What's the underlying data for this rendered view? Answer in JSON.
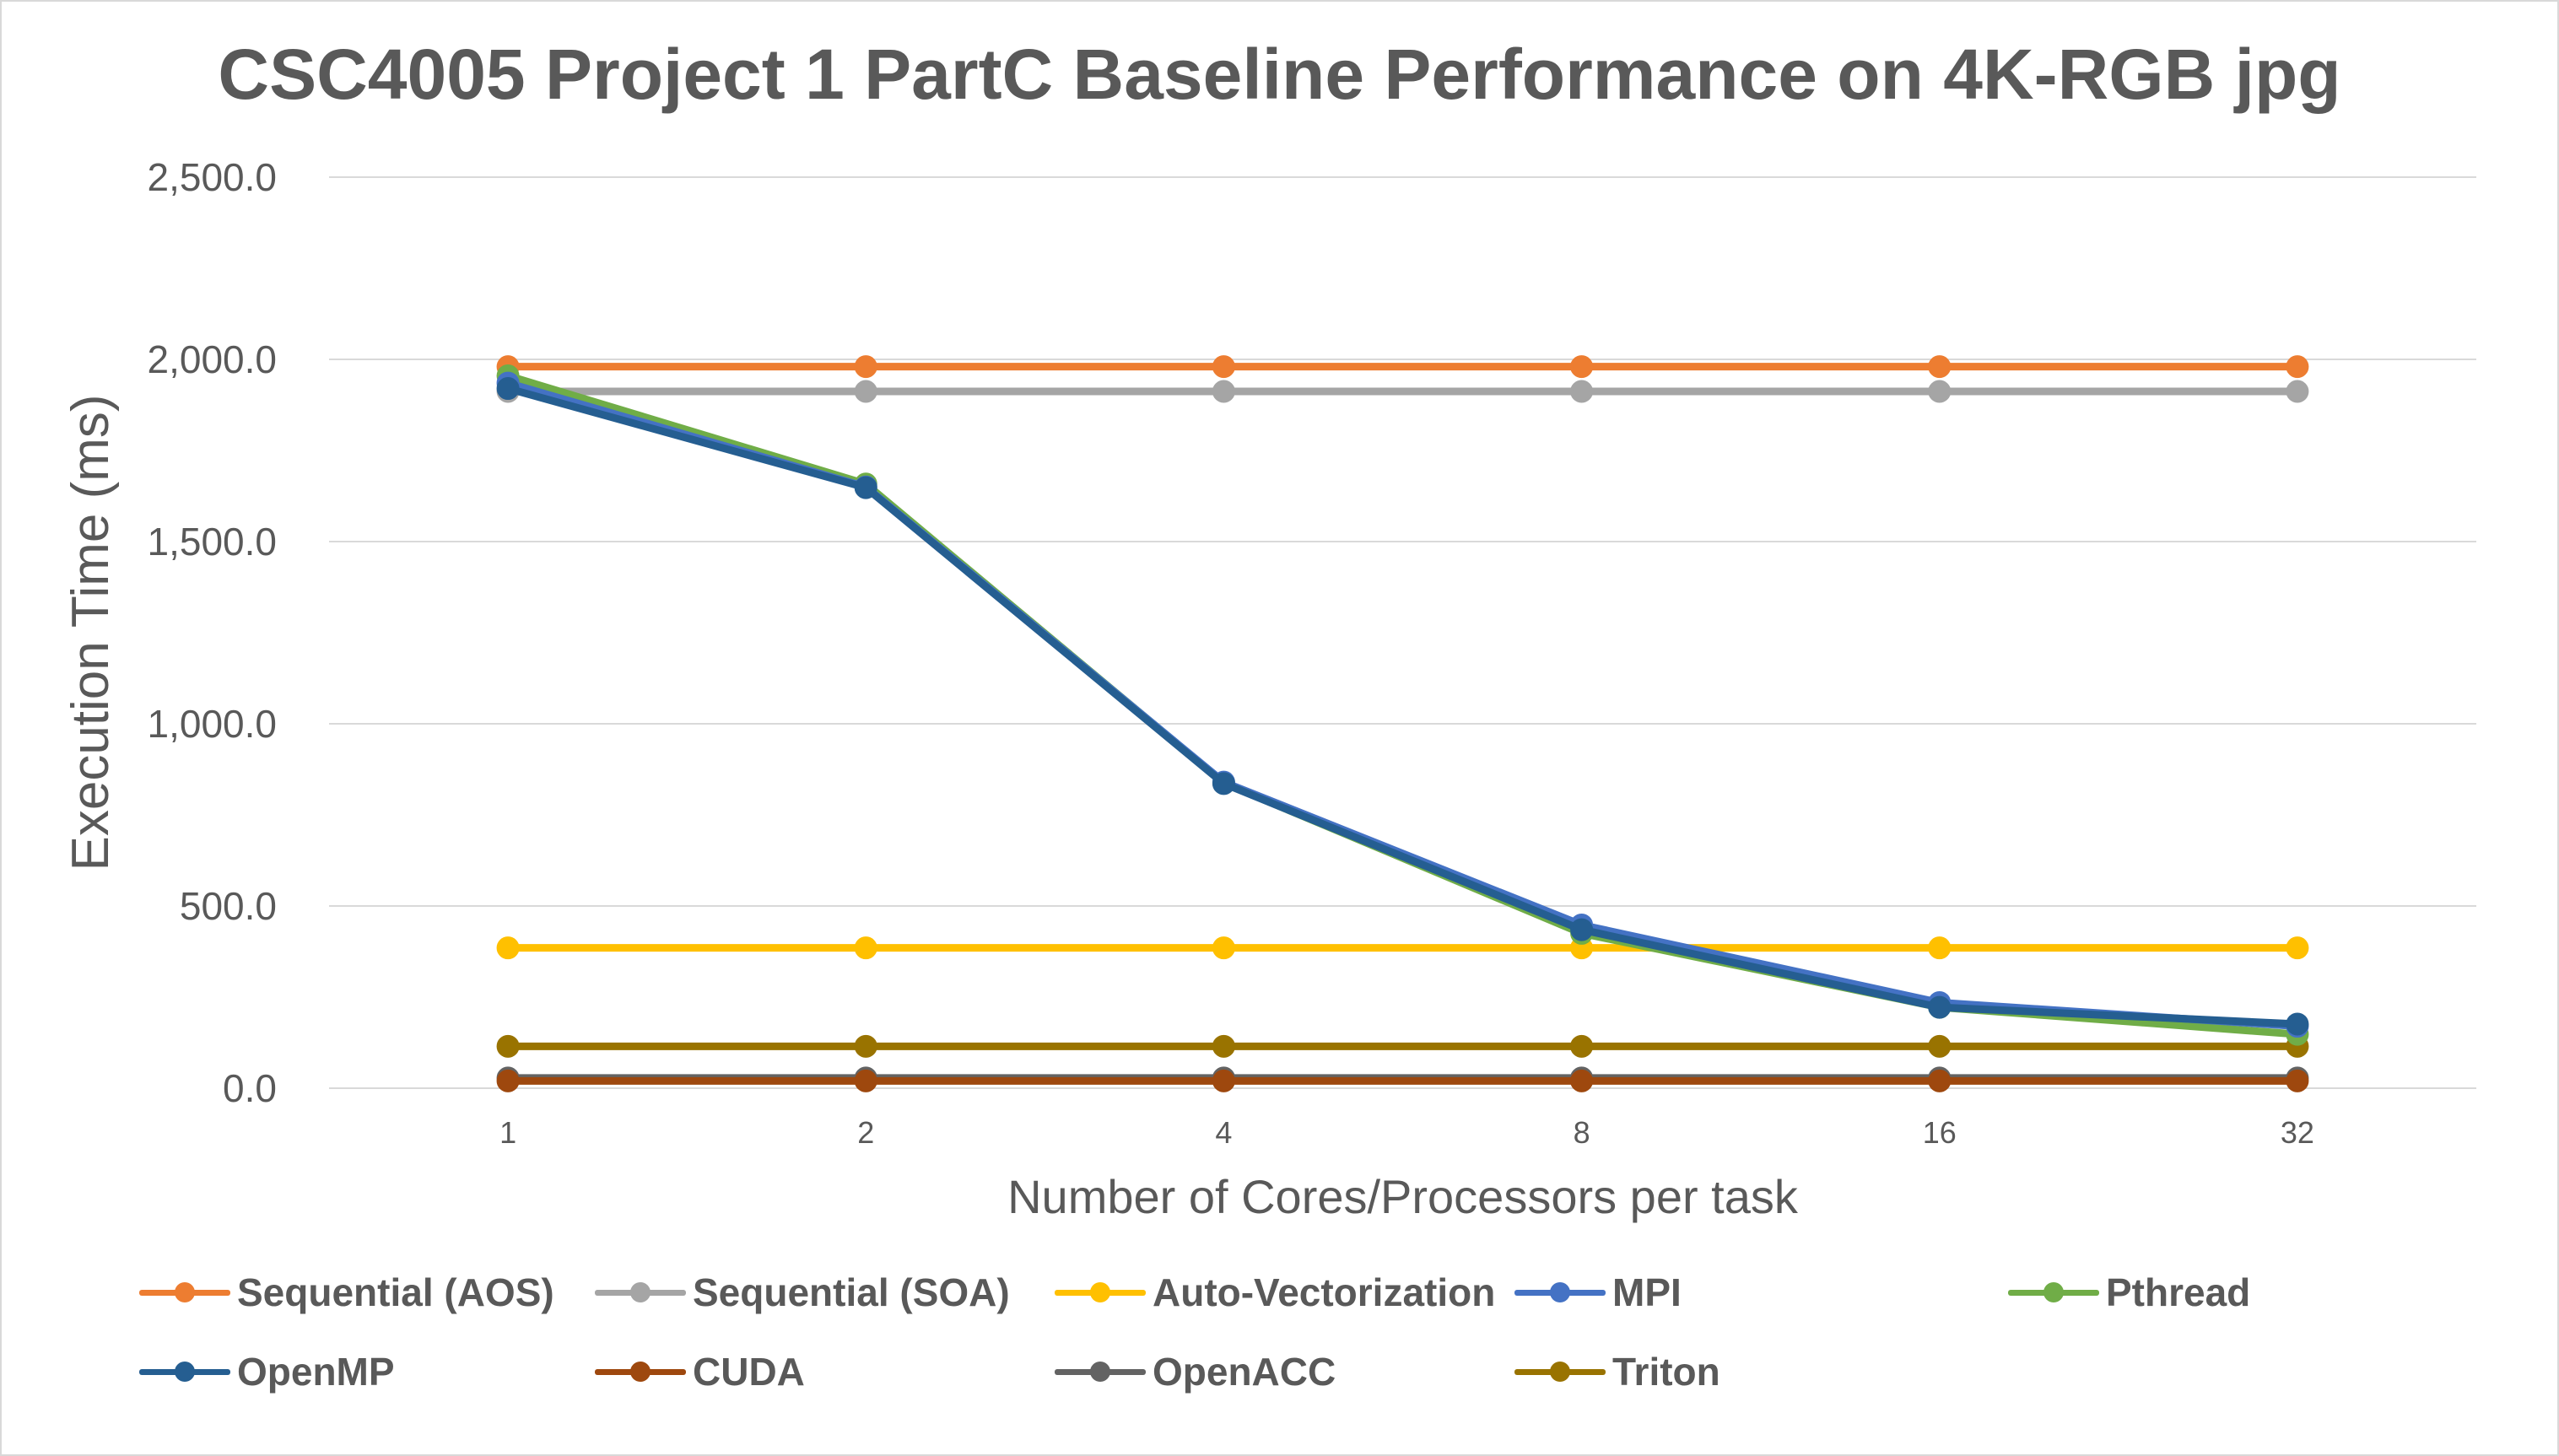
{
  "chart_data": {
    "type": "line",
    "title": "CSC4005 Project 1 PartC Baseline Performance on 4K-RGB jpg",
    "xlabel": "Number of Cores/Processors per task",
    "ylabel": "Execution Time (ms)",
    "categories": [
      "1",
      "2",
      "4",
      "8",
      "16",
      "32"
    ],
    "ylim": [
      0,
      2500
    ],
    "yticks": [
      "0.0",
      "500.0",
      "1,000.0",
      "1,500.0",
      "2,000.0",
      "2,500.0"
    ],
    "grid": true,
    "legend_position": "bottom",
    "series": [
      {
        "name": "Sequential (AOS)",
        "color": "#ED7D31",
        "values": [
          1980,
          1980,
          1980,
          1980,
          1980,
          1980
        ]
      },
      {
        "name": "Sequential (SOA)",
        "color": "#A5A5A5",
        "values": [
          1912,
          1912,
          1912,
          1912,
          1912,
          1912
        ]
      },
      {
        "name": "Auto-Vectorization",
        "color": "#FFC000",
        "values": [
          385,
          385,
          385,
          385,
          385,
          385
        ]
      },
      {
        "name": "MPI",
        "color": "#4472C4",
        "values": [
          1935,
          1650,
          840,
          448,
          235,
          170
        ]
      },
      {
        "name": "Pthread",
        "color": "#70AD47",
        "values": [
          1955,
          1658,
          838,
          425,
          222,
          148
        ]
      },
      {
        "name": "OpenMP",
        "color": "#255E91",
        "values": [
          1920,
          1648,
          836,
          435,
          222,
          176
        ]
      },
      {
        "name": "CUDA",
        "color": "#9E480E",
        "values": [
          20,
          20,
          20,
          20,
          20,
          20
        ]
      },
      {
        "name": "OpenACC",
        "color": "#636363",
        "values": [
          28,
          28,
          28,
          28,
          28,
          28
        ]
      },
      {
        "name": "Triton",
        "color": "#997300",
        "values": [
          115,
          115,
          115,
          115,
          115,
          115
        ]
      }
    ]
  }
}
